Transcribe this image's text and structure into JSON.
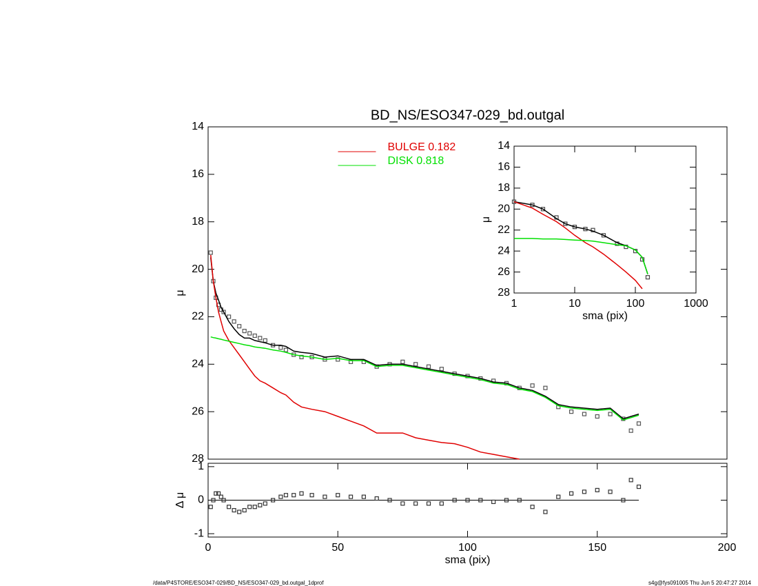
{
  "chart_data": [
    {
      "type": "line",
      "title": "BD_NS/ESO347-029_bd.outgal",
      "y_label": "μ",
      "xlim": [
        0,
        200
      ],
      "ylim": [
        14,
        28
      ],
      "y_reversed": true,
      "yticks": [
        14,
        16,
        18,
        20,
        22,
        24,
        26,
        28
      ],
      "legend": "top-center",
      "x": [
        1,
        2,
        3,
        4,
        5,
        6,
        8,
        10,
        12,
        14,
        16,
        18,
        20,
        22,
        25,
        28,
        30,
        33,
        36,
        40,
        45,
        50,
        55,
        60,
        65,
        70,
        75,
        80,
        85,
        90,
        95,
        100,
        105,
        110,
        115,
        120,
        125,
        130,
        135,
        140,
        145,
        150,
        155,
        160,
        163,
        166
      ],
      "series": [
        {
          "color": "#555555",
          "marker": "square",
          "values": [
            19.3,
            20.5,
            21.2,
            21.5,
            21.7,
            21.8,
            22.0,
            22.2,
            22.4,
            22.6,
            22.7,
            22.8,
            22.9,
            23.0,
            23.2,
            23.3,
            23.4,
            23.6,
            23.7,
            23.7,
            23.8,
            23.8,
            23.9,
            23.9,
            24.1,
            24.0,
            23.9,
            24.0,
            24.1,
            24.2,
            24.4,
            24.5,
            24.6,
            24.7,
            24.8,
            25.0,
            24.9,
            25.0,
            25.8,
            26.0,
            26.1,
            26.2,
            26.1,
            26.3,
            26.8,
            26.5
          ]
        },
        {
          "color": "#000000",
          "values": [
            19.5,
            20.5,
            21.0,
            21.3,
            21.6,
            21.8,
            22.2,
            22.5,
            22.75,
            22.9,
            22.9,
            23.0,
            23.05,
            23.1,
            23.2,
            23.2,
            23.25,
            23.45,
            23.5,
            23.55,
            23.7,
            23.65,
            23.8,
            23.8,
            24.05,
            24.0,
            24.0,
            24.1,
            24.2,
            24.3,
            24.4,
            24.5,
            24.6,
            24.75,
            24.8,
            25.0,
            25.1,
            25.35,
            25.7,
            25.8,
            25.85,
            25.9,
            25.85,
            26.3,
            26.2,
            26.1
          ]
        },
        {
          "name": "BULGE  0.182",
          "color": "#e00000",
          "values": [
            19.4,
            20.5,
            21.2,
            21.8,
            22.2,
            22.6,
            23.0,
            23.3,
            23.6,
            23.9,
            24.2,
            24.5,
            24.7,
            24.8,
            25.0,
            25.2,
            25.3,
            25.6,
            25.8,
            25.9,
            26.0,
            26.2,
            26.4,
            26.6,
            26.9,
            26.9,
            26.9,
            27.1,
            27.2,
            27.3,
            27.35,
            27.5,
            27.7,
            27.8,
            27.9,
            28.0,
            null,
            null,
            null,
            null,
            null,
            null,
            null,
            null,
            null,
            null
          ]
        },
        {
          "name": "DISK  0.818",
          "color": "#00e000",
          "values": [
            22.85,
            22.88,
            22.9,
            22.93,
            22.95,
            22.98,
            23.03,
            23.08,
            23.13,
            23.18,
            23.22,
            23.27,
            23.3,
            23.33,
            23.4,
            23.45,
            23.5,
            23.6,
            23.65,
            23.7,
            23.8,
            23.75,
            23.85,
            23.85,
            24.1,
            24.05,
            24.05,
            24.15,
            24.25,
            24.35,
            24.45,
            24.55,
            24.65,
            24.8,
            24.85,
            25.05,
            25.15,
            25.4,
            25.75,
            25.85,
            25.9,
            25.95,
            25.9,
            26.35,
            26.25,
            26.15
          ]
        }
      ]
    },
    {
      "type": "line",
      "x_label": "sma (pix)",
      "y_label": "Δ μ",
      "xlim": [
        0,
        200
      ],
      "ylim": [
        -1.1,
        1.1
      ],
      "xticks": [
        0,
        50,
        100,
        150,
        200
      ],
      "yticks": [
        -1,
        0,
        1
      ],
      "hline": 0,
      "x": [
        1,
        2,
        3,
        4,
        5,
        6,
        8,
        10,
        12,
        14,
        16,
        18,
        20,
        22,
        25,
        28,
        30,
        33,
        36,
        40,
        45,
        50,
        55,
        60,
        65,
        70,
        75,
        80,
        85,
        90,
        95,
        100,
        105,
        110,
        115,
        120,
        125,
        130,
        135,
        140,
        145,
        150,
        155,
        160,
        163,
        166
      ],
      "series": [
        {
          "color": "#333333",
          "marker": "square",
          "values": [
            -0.2,
            0.0,
            0.2,
            0.2,
            0.1,
            0.0,
            -0.2,
            -0.3,
            -0.35,
            -0.3,
            -0.2,
            -0.2,
            -0.15,
            -0.1,
            0.0,
            0.1,
            0.15,
            0.15,
            0.2,
            0.15,
            0.1,
            0.15,
            0.1,
            0.1,
            0.05,
            0.0,
            -0.1,
            -0.1,
            -0.1,
            -0.1,
            0.0,
            0.0,
            0.0,
            -0.05,
            0.0,
            0.0,
            -0.2,
            -0.35,
            0.1,
            0.2,
            0.25,
            0.3,
            0.25,
            0.0,
            0.6,
            0.4
          ]
        }
      ]
    },
    {
      "type": "line",
      "x_label": "sma (pix)",
      "y_label": "μ",
      "xscale": "log",
      "xlim": [
        1,
        1000
      ],
      "ylim": [
        14,
        28
      ],
      "y_reversed": true,
      "xticks": [
        1,
        10,
        100,
        1000
      ],
      "yticks": [
        14,
        16,
        18,
        20,
        22,
        24,
        26,
        28
      ],
      "x": [
        1,
        2,
        3,
        5,
        7,
        10,
        15,
        20,
        30,
        50,
        70,
        100,
        130,
        160
      ],
      "series": [
        {
          "color": "#444444",
          "marker": "square",
          "values": [
            19.3,
            19.6,
            20.0,
            20.8,
            21.4,
            21.7,
            21.9,
            22.0,
            22.5,
            23.3,
            23.6,
            24.0,
            24.8,
            26.5
          ]
        },
        {
          "color": "#000000",
          "values": [
            19.3,
            19.6,
            20.0,
            20.9,
            21.4,
            21.7,
            21.9,
            22.1,
            22.5,
            23.2,
            23.5,
            23.9,
            24.6,
            26.2
          ]
        },
        {
          "color": "#e00000",
          "values": [
            19.3,
            19.9,
            20.5,
            21.2,
            21.8,
            22.5,
            23.2,
            23.6,
            24.3,
            25.3,
            26.0,
            26.8,
            27.6,
            null
          ]
        },
        {
          "color": "#00e000",
          "values": [
            22.8,
            22.8,
            22.85,
            22.85,
            22.9,
            22.95,
            23.0,
            23.05,
            23.2,
            23.4,
            23.5,
            23.9,
            24.6,
            26.2
          ]
        }
      ]
    }
  ],
  "footer": {
    "left": "/data/P4STORE/ESO347-029/BD_NS/ESO347-029_bd.outgal_1dprof",
    "right": "s4g@fys091005  Thu Jun  5 20:47:27 2014"
  }
}
